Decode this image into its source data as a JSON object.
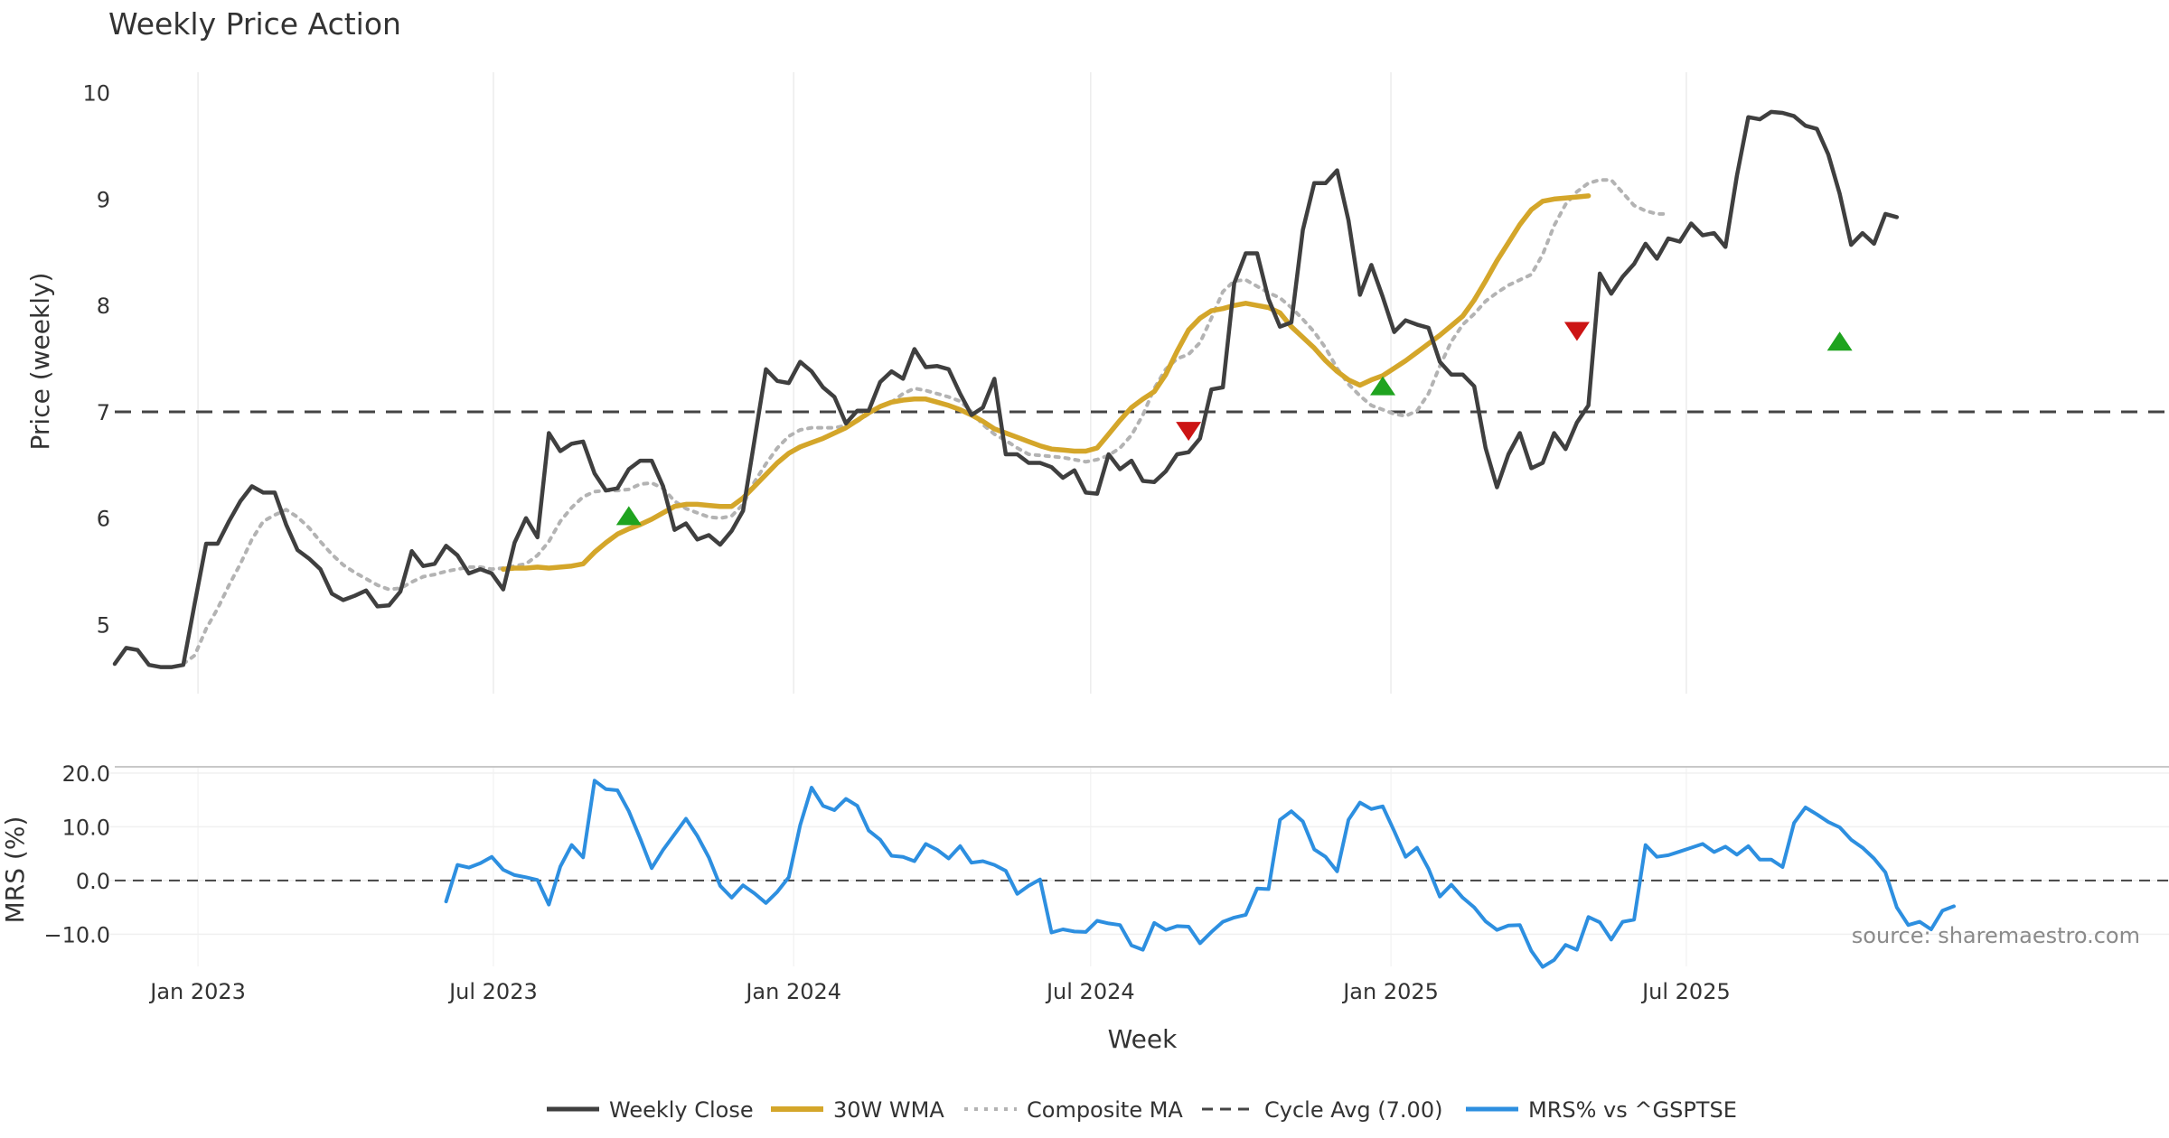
{
  "chart_data": {
    "type": "line",
    "title": "Weekly Price Action",
    "source": "source: sharemaestro.com",
    "xlabel": "Week",
    "x_ticks": [
      "Jan 2023",
      "Jul 2023",
      "Jan 2024",
      "Jul 2024",
      "Jan 2025",
      "Jul 2025"
    ],
    "x_start": "2022-11-11",
    "price_panel": {
      "ylabel": "Price (weekly)",
      "ylim": [
        4.35,
        10.15
      ],
      "y_ticks": [
        "5",
        "6",
        "7",
        "8",
        "9",
        "10"
      ]
    },
    "mrs_panel": {
      "ylabel": "MRS (%)",
      "ylim": [
        -16,
        21
      ],
      "y_ticks": [
        "20.0",
        "10.0",
        "0.0",
        "−10.0"
      ]
    },
    "cycle_avg": 7.0,
    "colors": {
      "close": "#3f3f3f",
      "wma": "#d4a62a",
      "composite": "#b3b3b3",
      "cycle": "#444444",
      "mrs": "#2d8fe0",
      "buy": "#1fa31f",
      "sell": "#cc1414"
    },
    "series": [
      {
        "name": "Weekly Close",
        "values": [
          4.63,
          4.78,
          4.76,
          4.62,
          4.6,
          4.6,
          4.62,
          5.2,
          5.76,
          5.76,
          5.97,
          6.16,
          6.3,
          6.24,
          6.24,
          5.94,
          5.7,
          5.62,
          5.52,
          5.29,
          5.23,
          5.27,
          5.32,
          5.17,
          5.18,
          5.31,
          5.69,
          5.55,
          5.57,
          5.74,
          5.65,
          5.48,
          5.52,
          5.48,
          5.33,
          5.77,
          6.0,
          5.82,
          6.8,
          6.63,
          6.7,
          6.72,
          6.42,
          6.26,
          6.28,
          6.46,
          6.54,
          6.54,
          6.3,
          5.89,
          5.95,
          5.8,
          5.84,
          5.75,
          5.88,
          6.07,
          6.73,
          7.4,
          7.29,
          7.27,
          7.47,
          7.38,
          7.23,
          7.14,
          6.89,
          7.01,
          7.01,
          7.28,
          7.38,
          7.31,
          7.59,
          7.42,
          7.43,
          7.4,
          7.17,
          6.97,
          7.04,
          7.31,
          6.6,
          6.6,
          6.52,
          6.52,
          6.48,
          6.38,
          6.45,
          6.24,
          6.23,
          6.6,
          6.46,
          6.54,
          6.35,
          6.34,
          6.44,
          6.6,
          6.62,
          6.75,
          7.21,
          7.23,
          8.21,
          8.49,
          8.49,
          8.06,
          7.8,
          7.84,
          8.71,
          9.15,
          9.15,
          9.27,
          8.8,
          8.1,
          8.38,
          8.08,
          7.75,
          7.86,
          7.82,
          7.79,
          7.47,
          7.35,
          7.35,
          7.24,
          6.66,
          6.29,
          6.6,
          6.8,
          6.47,
          6.52,
          6.8,
          6.65,
          6.9,
          7.06,
          8.3,
          8.11,
          8.27,
          8.39,
          8.58,
          8.44,
          8.63,
          8.6,
          8.77,
          8.66,
          8.68,
          8.55,
          9.22,
          9.77,
          9.75,
          9.82,
          9.81,
          9.78,
          9.69,
          9.66,
          9.42,
          9.05,
          8.57,
          8.68,
          8.58,
          8.86,
          8.83
        ]
      },
      {
        "name": "30W WMA",
        "start_index": 34,
        "values": [
          5.52,
          5.53,
          5.53,
          5.54,
          5.53,
          5.54,
          5.55,
          5.57,
          5.68,
          5.77,
          5.85,
          5.9,
          5.94,
          5.99,
          6.05,
          6.11,
          6.13,
          6.13,
          6.12,
          6.11,
          6.11,
          6.19,
          6.3,
          6.41,
          6.52,
          6.61,
          6.67,
          6.71,
          6.75,
          6.8,
          6.85,
          6.92,
          6.99,
          7.05,
          7.09,
          7.11,
          7.12,
          7.12,
          7.09,
          7.06,
          7.02,
          6.97,
          6.91,
          6.84,
          6.8,
          6.76,
          6.72,
          6.68,
          6.65,
          6.64,
          6.63,
          6.63,
          6.66,
          6.79,
          6.92,
          7.04,
          7.12,
          7.19,
          7.35,
          7.57,
          7.77,
          7.88,
          7.95,
          7.97,
          8.0,
          8.02,
          8.0,
          7.98,
          7.93,
          7.8,
          7.7,
          7.6,
          7.48,
          7.38,
          7.3,
          7.25,
          7.3,
          7.34,
          7.41,
          7.48,
          7.56,
          7.64,
          7.72,
          7.81,
          7.9,
          8.05,
          8.23,
          8.42,
          8.59,
          8.76,
          8.9,
          8.98,
          9.0,
          9.01,
          9.02,
          9.03
        ]
      },
      {
        "name": "Composite MA",
        "start_index": 6,
        "values": [
          4.63,
          4.71,
          4.96,
          5.15,
          5.37,
          5.57,
          5.8,
          5.97,
          6.03,
          6.08,
          6.01,
          5.91,
          5.78,
          5.66,
          5.56,
          5.49,
          5.43,
          5.37,
          5.33,
          5.34,
          5.4,
          5.45,
          5.47,
          5.5,
          5.52,
          5.54,
          5.54,
          5.52,
          5.53,
          5.55,
          5.57,
          5.65,
          5.78,
          5.97,
          6.1,
          6.2,
          6.25,
          6.26,
          6.26,
          6.27,
          6.32,
          6.33,
          6.28,
          6.16,
          6.09,
          6.05,
          6.01,
          6.0,
          6.02,
          6.13,
          6.34,
          6.51,
          6.66,
          6.77,
          6.83,
          6.85,
          6.85,
          6.85,
          6.87,
          6.91,
          6.98,
          7.05,
          7.09,
          7.17,
          7.22,
          7.2,
          7.17,
          7.14,
          7.1,
          7.0,
          6.88,
          6.79,
          6.73,
          6.66,
          6.6,
          6.59,
          6.58,
          6.57,
          6.55,
          6.53,
          6.55,
          6.59,
          6.66,
          6.78,
          6.97,
          7.22,
          7.4,
          7.5,
          7.54,
          7.65,
          7.88,
          8.13,
          8.23,
          8.24,
          8.18,
          8.12,
          8.07,
          7.98,
          7.87,
          7.75,
          7.6,
          7.41,
          7.26,
          7.15,
          7.06,
          7.02,
          6.98,
          6.96,
          7.01,
          7.17,
          7.43,
          7.66,
          7.82,
          7.92,
          8.04,
          8.12,
          8.19,
          8.24,
          8.29,
          8.48,
          8.75,
          8.95,
          9.07,
          9.15,
          9.18,
          9.18,
          9.06,
          8.94,
          8.89,
          8.86,
          8.86
        ]
      },
      {
        "name": "Cycle Avg (7.00)",
        "values": [
          7.0
        ]
      },
      {
        "name": "MRS% vs ^GSPTSE",
        "start_index": 29,
        "values": [
          -3.9,
          2.9,
          2.4,
          3.2,
          4.4,
          2.0,
          1.0,
          0.6,
          0.1,
          -4.5,
          2.6,
          6.6,
          4.3,
          18.6,
          17.0,
          16.8,
          12.9,
          7.8,
          2.3,
          5.7,
          8.6,
          11.5,
          8.3,
          4.3,
          -1.0,
          -3.2,
          -0.9,
          -2.4,
          -4.2,
          -2.1,
          0.6,
          10.3,
          17.3,
          13.9,
          13.1,
          15.2,
          13.9,
          9.3,
          7.6,
          4.6,
          4.4,
          3.6,
          6.8,
          5.7,
          4.1,
          6.4,
          3.3,
          3.6,
          2.9,
          1.8,
          -2.5,
          -1.0,
          0.2,
          -9.7,
          -9.1,
          -9.5,
          -9.6,
          -7.5,
          -8.0,
          -8.3,
          -12.1,
          -12.9,
          -7.9,
          -9.2,
          -8.5,
          -8.6,
          -11.7,
          -9.6,
          -7.7,
          -6.9,
          -6.4,
          -1.5,
          -1.6,
          11.3,
          12.9,
          11.0,
          5.8,
          4.4,
          1.7,
          11.3,
          14.5,
          13.3,
          13.8,
          9.2,
          4.4,
          6.1,
          2.2,
          -3.0,
          -0.8,
          -3.2,
          -5.0,
          -7.6,
          -9.2,
          -8.4,
          -8.3,
          -13.1,
          -16.1,
          -14.8,
          -12.0,
          -12.9,
          -6.8,
          -7.8,
          -11.0,
          -7.7,
          -7.3,
          6.6,
          4.4,
          4.7,
          5.4,
          6.1,
          6.8,
          5.3,
          6.3,
          4.8,
          6.4,
          3.9,
          3.9,
          2.5,
          10.7,
          13.6,
          12.3,
          10.9,
          9.9,
          7.6,
          6.1,
          4.1,
          1.5,
          -5.0,
          -8.3,
          -7.7,
          -9.1,
          -5.6,
          -4.8
        ]
      }
    ],
    "markers": [
      {
        "type": "buy",
        "week_index": 45,
        "value": 6.02
      },
      {
        "type": "sell",
        "week_index": 94,
        "value": 6.82
      },
      {
        "type": "buy",
        "week_index": 111,
        "value": 7.24
      },
      {
        "type": "sell",
        "week_index": 128,
        "value": 7.76
      },
      {
        "type": "buy",
        "week_index": 151,
        "value": 7.66
      }
    ],
    "legend": {
      "placement": "bottom-center",
      "entries": [
        "Weekly Close",
        "30W WMA",
        "Composite MA",
        "Cycle Avg (7.00)",
        "MRS% vs ^GSPTSE"
      ]
    },
    "grid": true
  }
}
